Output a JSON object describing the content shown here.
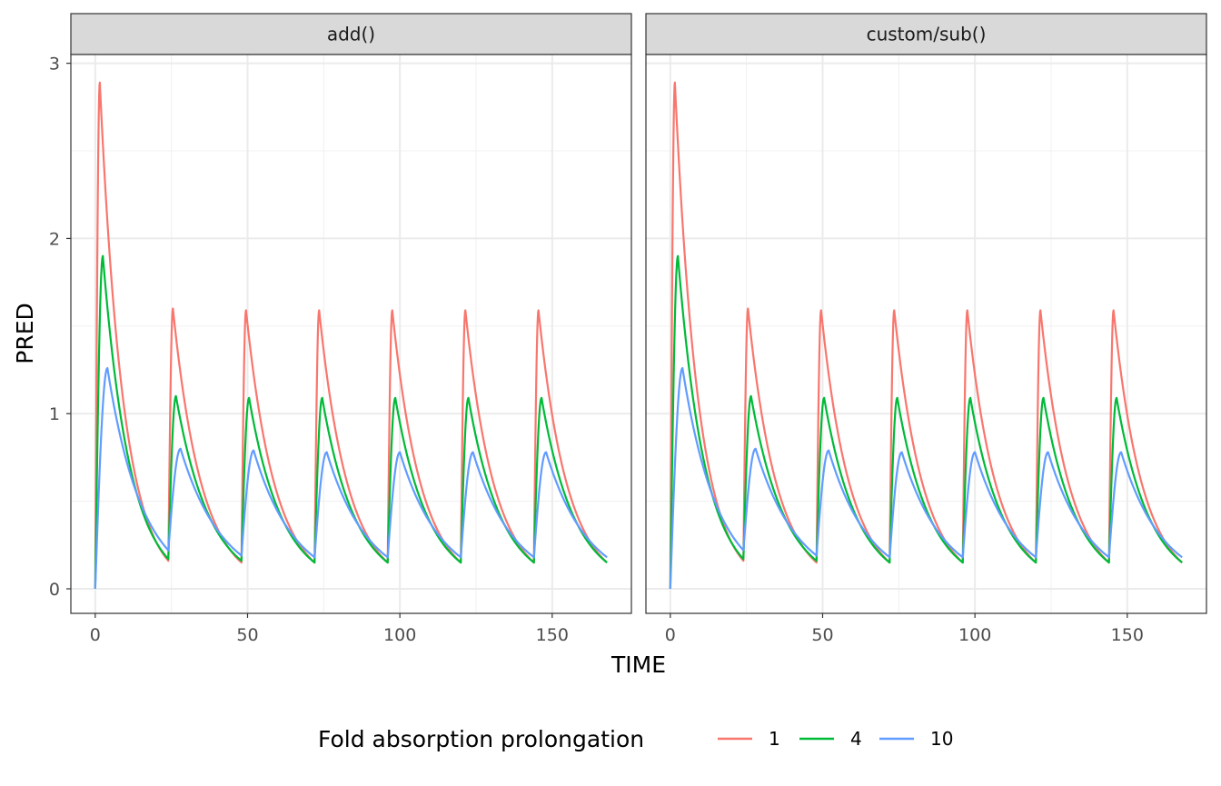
{
  "chart_data": {
    "type": "line",
    "xlabel": "TIME",
    "ylabel": "PRED",
    "xlim": [
      -8,
      176
    ],
    "ylim": [
      -0.14,
      3.05
    ],
    "x_ticks": [
      0,
      50,
      100,
      150
    ],
    "y_ticks": [
      0,
      1,
      2,
      3
    ],
    "grid": true,
    "legend": {
      "title": "Fold absorption prolongation",
      "position": "bottom",
      "entries": [
        "1",
        "4",
        "10"
      ]
    },
    "colors": {
      "1": "#F8766D",
      "4": "#00BA38",
      "10": "#619CFF"
    },
    "dosing": {
      "interval": 24,
      "doses": 7,
      "end_time": 168
    },
    "panels": [
      {
        "label": "add()",
        "series": [
          {
            "name": "1",
            "peaks": [
              [
                1.5,
                2.89
              ],
              [
                25.5,
                1.6
              ],
              [
                49.5,
                1.59
              ],
              [
                73.5,
                1.59
              ],
              [
                97.5,
                1.59
              ],
              [
                121.5,
                1.59
              ],
              [
                145.5,
                1.59
              ]
            ],
            "troughs": [
              0.16,
              0.15,
              0.15,
              0.15,
              0.15,
              0.15,
              0.15
            ]
          },
          {
            "name": "4",
            "peaks": [
              [
                2.5,
                1.9
              ],
              [
                26.5,
                1.1
              ],
              [
                50.5,
                1.09
              ],
              [
                74.5,
                1.09
              ],
              [
                98.5,
                1.09
              ],
              [
                122.5,
                1.09
              ],
              [
                146.5,
                1.09
              ]
            ],
            "troughs": [
              0.17,
              0.16,
              0.15,
              0.15,
              0.15,
              0.15,
              0.15
            ]
          },
          {
            "name": "10",
            "peaks": [
              [
                4,
                1.26
              ],
              [
                28,
                0.8
              ],
              [
                52,
                0.79
              ],
              [
                76,
                0.78
              ],
              [
                100,
                0.78
              ],
              [
                124,
                0.78
              ],
              [
                148,
                0.78
              ]
            ],
            "troughs": [
              0.22,
              0.19,
              0.18,
              0.18,
              0.18,
              0.18,
              0.18
            ]
          }
        ]
      },
      {
        "label": "custom/sub()",
        "series": [
          {
            "name": "1",
            "peaks": [
              [
                1.5,
                2.89
              ],
              [
                25.5,
                1.6
              ],
              [
                49.5,
                1.59
              ],
              [
                73.5,
                1.59
              ],
              [
                97.5,
                1.59
              ],
              [
                121.5,
                1.59
              ],
              [
                145.5,
                1.59
              ]
            ],
            "troughs": [
              0.16,
              0.15,
              0.15,
              0.15,
              0.15,
              0.15,
              0.15
            ]
          },
          {
            "name": "4",
            "peaks": [
              [
                2.5,
                1.9
              ],
              [
                26.5,
                1.1
              ],
              [
                50.5,
                1.09
              ],
              [
                74.5,
                1.09
              ],
              [
                98.5,
                1.09
              ],
              [
                122.5,
                1.09
              ],
              [
                146.5,
                1.09
              ]
            ],
            "troughs": [
              0.17,
              0.16,
              0.15,
              0.15,
              0.15,
              0.15,
              0.15
            ]
          },
          {
            "name": "10",
            "peaks": [
              [
                4,
                1.26
              ],
              [
                28,
                0.8
              ],
              [
                52,
                0.79
              ],
              [
                76,
                0.78
              ],
              [
                100,
                0.78
              ],
              [
                124,
                0.78
              ],
              [
                148,
                0.78
              ]
            ],
            "troughs": [
              0.22,
              0.19,
              0.18,
              0.18,
              0.18,
              0.18,
              0.18
            ]
          }
        ]
      }
    ]
  }
}
